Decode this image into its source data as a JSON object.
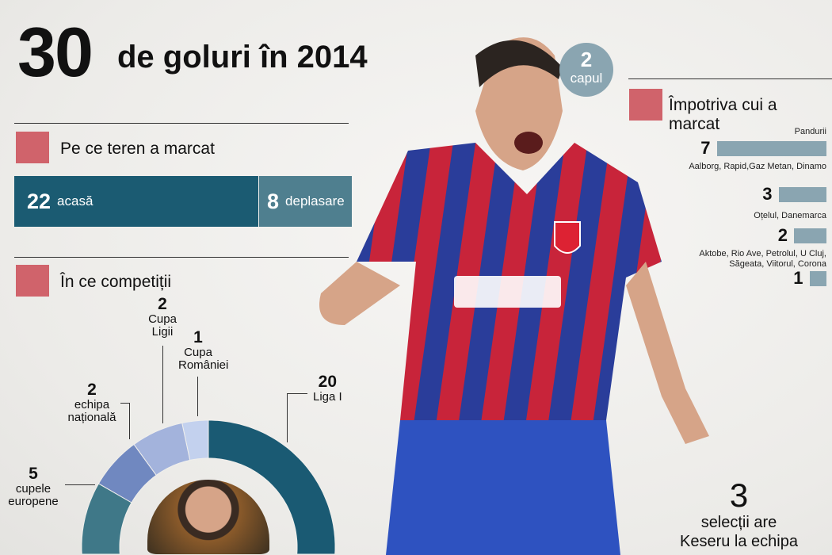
{
  "header": {
    "number": "30",
    "text": "de goluri în 2014"
  },
  "head_bubble": {
    "value": "2",
    "label": "capul"
  },
  "venue": {
    "title": "Pe ce teren a marcat",
    "home": {
      "value": "22",
      "label": "acasă"
    },
    "away": {
      "value": "8",
      "label": "deplasare"
    }
  },
  "competitions": {
    "title": "În ce competiții"
  },
  "opponents": {
    "title": "Împotriva cui a marcat"
  },
  "selections": {
    "value": "3",
    "line1": "selecții are",
    "line2": "Keseru la echipa"
  },
  "colors": {
    "accent": "#d0636b",
    "home": "#1b5b72",
    "away": "#4f7f8f",
    "bars": "#8aa5b1"
  },
  "chart_data": [
    {
      "type": "pie",
      "variant": "donut",
      "title": "În ce competiții",
      "categories": [
        "Liga I",
        "Cupa României",
        "Cupa Ligii",
        "echipa națională",
        "cupele europene"
      ],
      "values": [
        20,
        1,
        2,
        2,
        5
      ],
      "colors": [
        "#1a5a73",
        "#c3d1ee",
        "#a3b3dc",
        "#7088c0",
        "#3f7888"
      ]
    },
    {
      "type": "bar",
      "orientation": "horizontal",
      "title": "Împotriva cui a marcat",
      "categories": [
        "Pandurii",
        "Aalborg, Rapid,Gaz Metan, Dinamo",
        "Oțelul, Danemarca",
        "Aktobe, Rio Ave, Petrolul, U Cluj, Săgeata, Viitorul, Corona"
      ],
      "values": [
        7,
        3,
        2,
        1
      ]
    },
    {
      "type": "bar",
      "orientation": "stacked-horizontal",
      "title": "Pe ce teren a marcat",
      "categories": [
        "acasă",
        "deplasare"
      ],
      "values": [
        22,
        8
      ]
    }
  ]
}
